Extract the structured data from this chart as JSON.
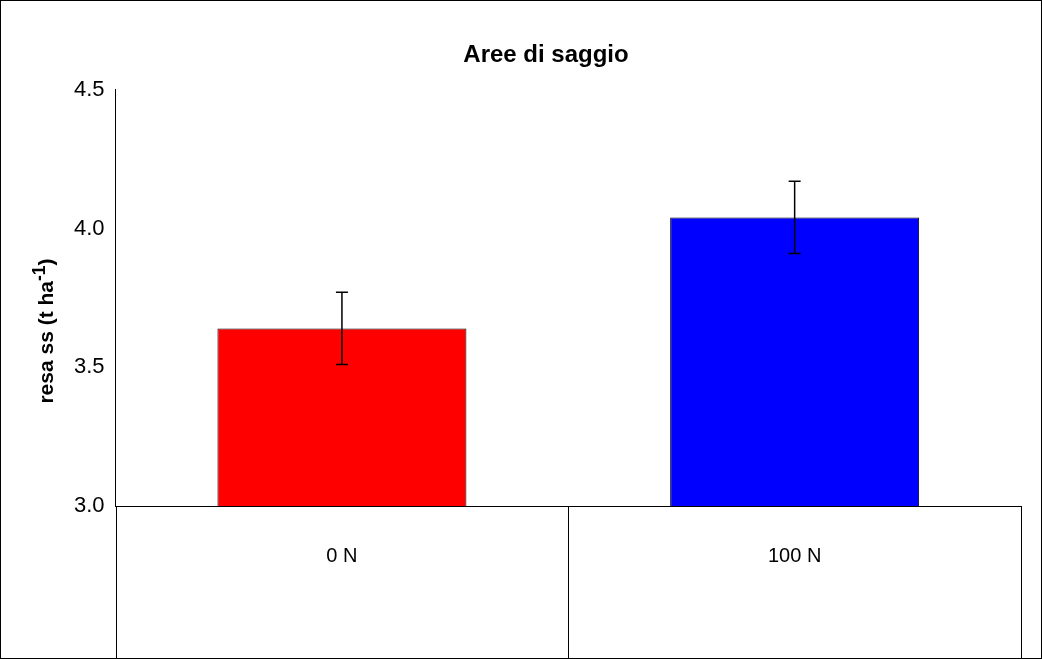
{
  "chart_data": {
    "type": "bar",
    "title": "Aree di saggio",
    "ylabel": "resa ss (t ha$^{-1}$)",
    "categories": [
      "0 N",
      "100 N"
    ],
    "values": [
      3.64,
      4.04
    ],
    "colors": [
      "#ff0000",
      "#0000ff"
    ],
    "errors": [
      0.13,
      0.13
    ],
    "ylim": [
      3.0,
      4.5
    ],
    "yticks": [
      {
        "value": 3.0,
        "label": "3.0"
      },
      {
        "value": 3.5,
        "label": "3.5"
      },
      {
        "value": 4.0,
        "label": "4.0"
      },
      {
        "value": 4.5,
        "label": "4.5"
      }
    ],
    "legend": false
  }
}
